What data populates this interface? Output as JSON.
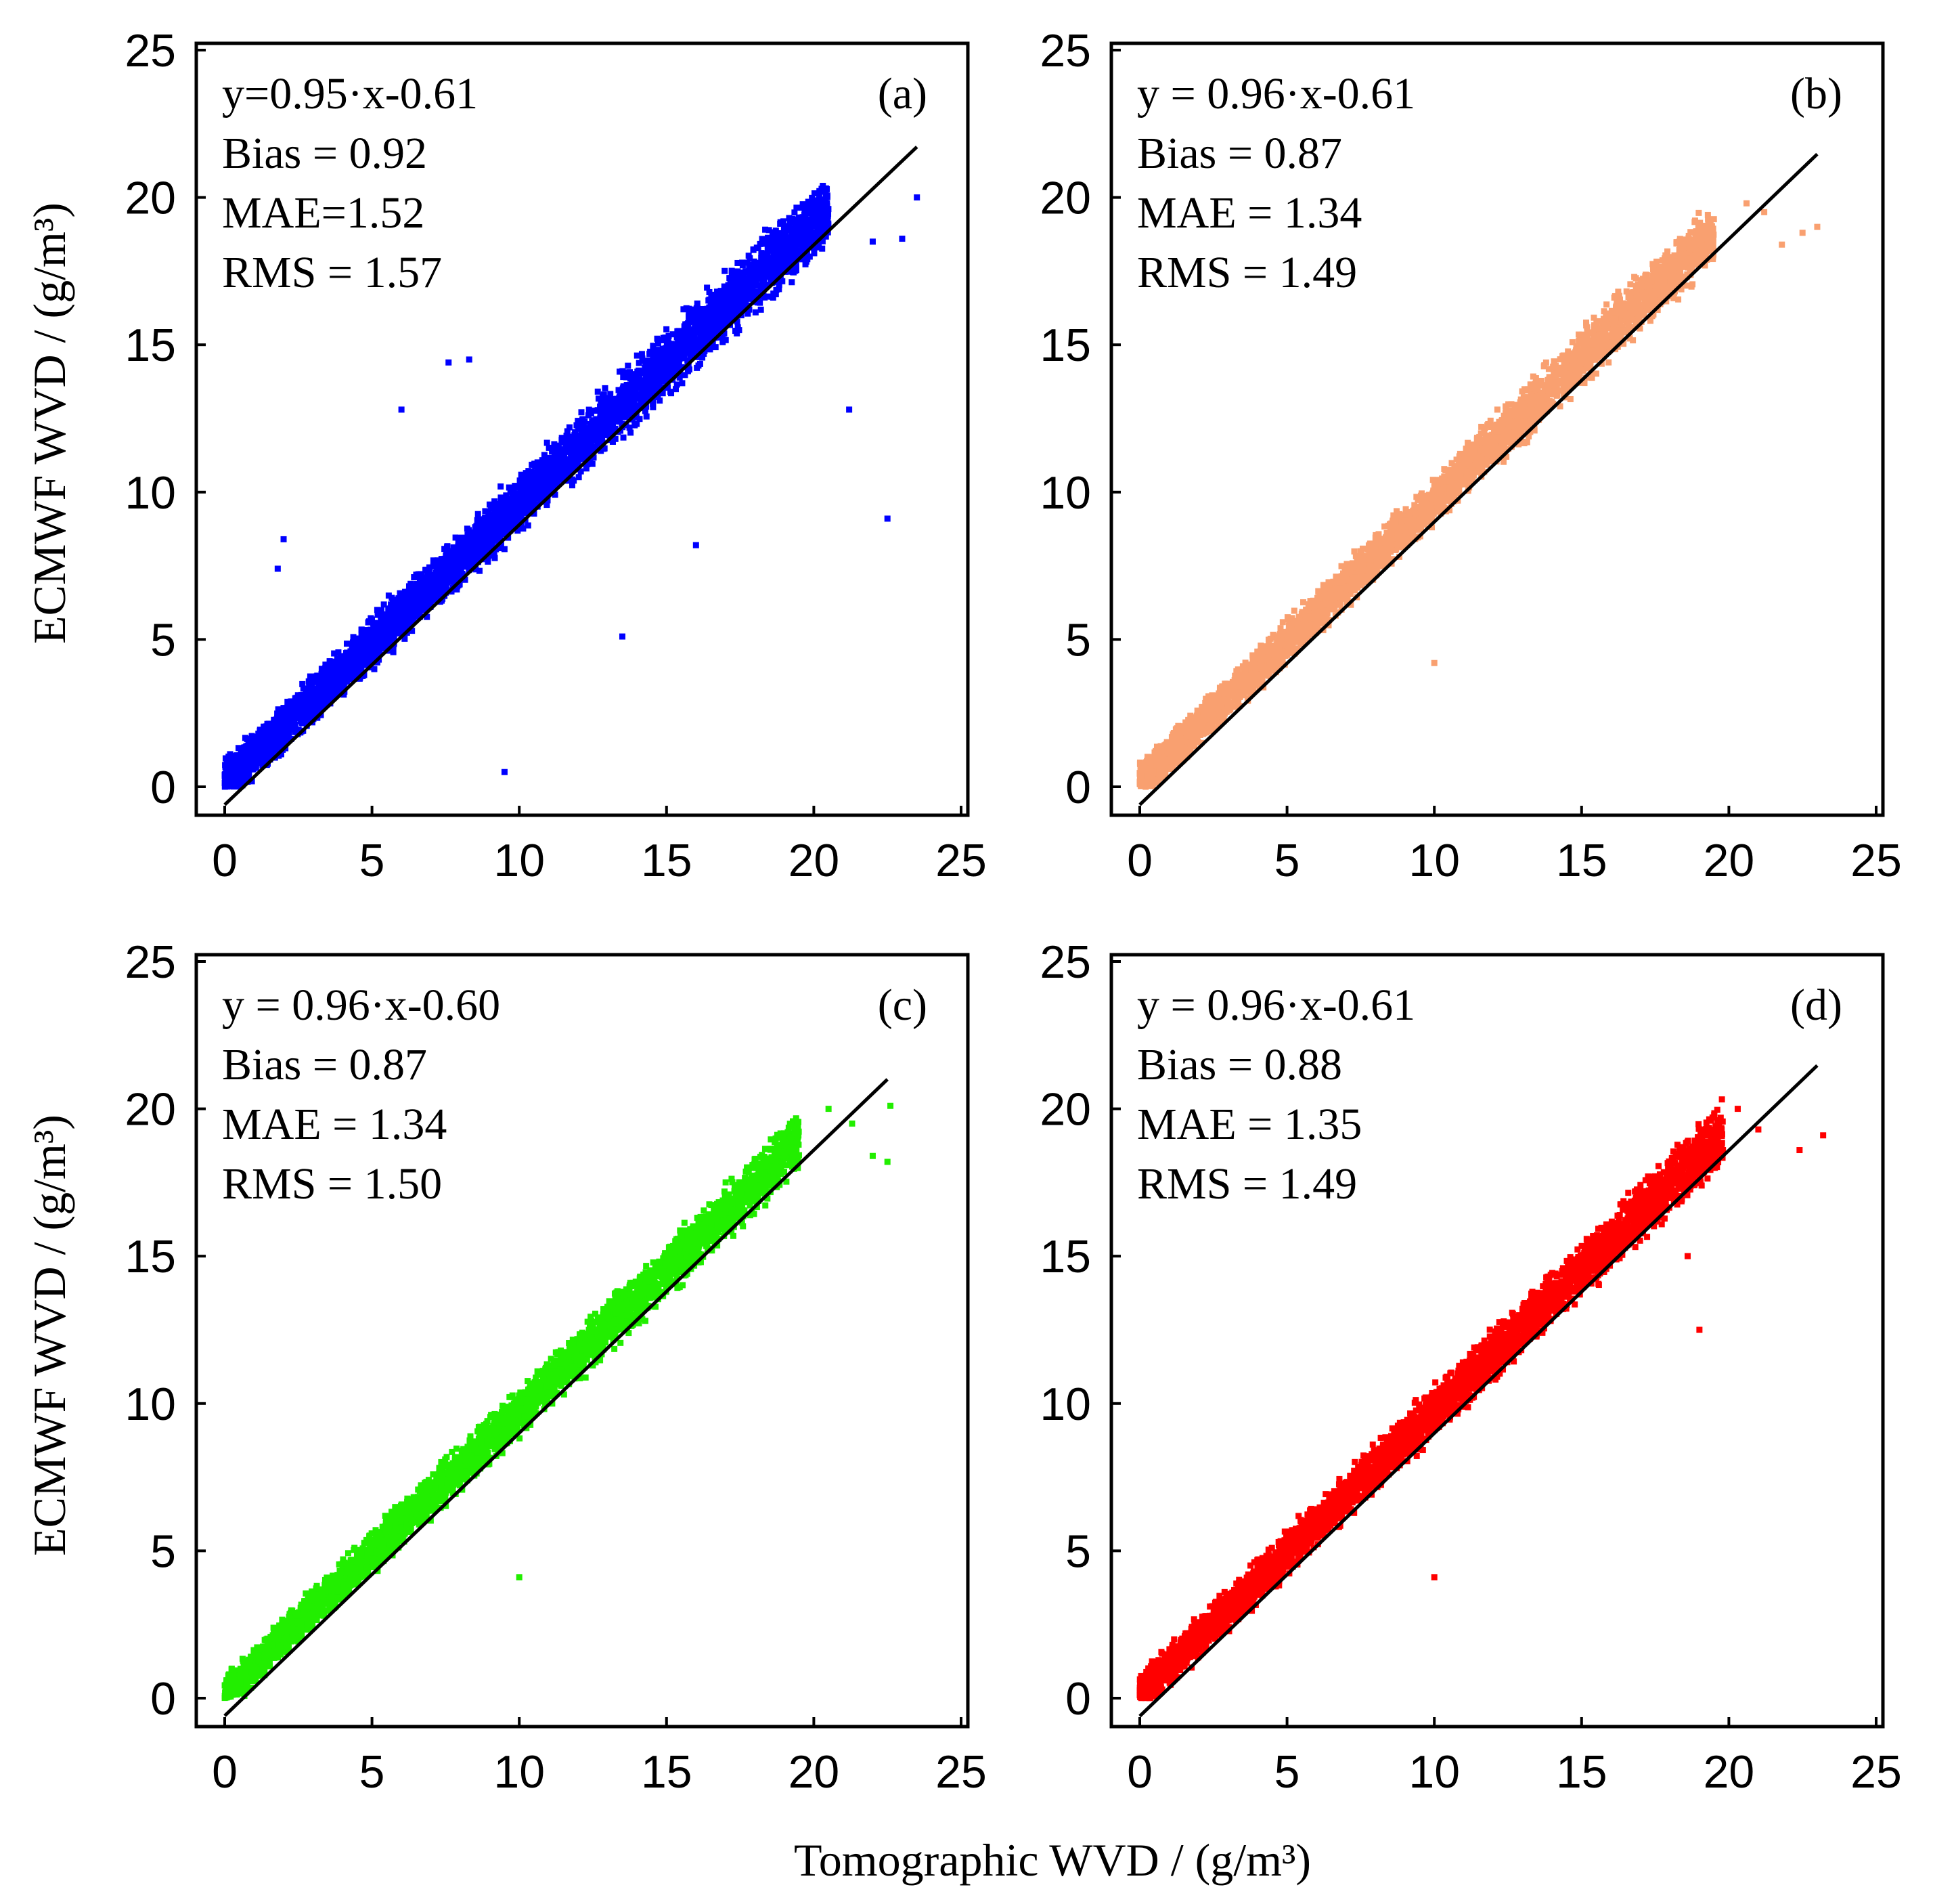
{
  "chart_data": [
    {
      "panel": "(a)",
      "type": "scatter",
      "color": "#0000ff",
      "xlim": [
        0,
        25
      ],
      "ylim": [
        0,
        25
      ],
      "xticks": [
        0,
        5,
        10,
        15,
        20,
        25
      ],
      "yticks": [
        0,
        5,
        10,
        15,
        20,
        25
      ],
      "fit": {
        "slope": 0.95,
        "intercept": -0.61,
        "x_range": [
          0,
          23.5
        ]
      },
      "stats": [
        "y=0.95·x-0.61",
        "Bias = 0.92",
        "MAE=1.52",
        "RMS = 1.57"
      ],
      "cluster": {
        "x_max": 20.5,
        "spread": 1.6,
        "count": 5200,
        "seed": 11
      },
      "outliers": [
        [
          23.5,
          20.0
        ],
        [
          22.5,
          9.1
        ],
        [
          21.2,
          12.8
        ],
        [
          9.5,
          0.5
        ],
        [
          8.3,
          14.5
        ],
        [
          7.6,
          14.4
        ],
        [
          6.0,
          12.8
        ],
        [
          2.0,
          8.4
        ],
        [
          1.8,
          7.4
        ],
        [
          22.0,
          18.5
        ],
        [
          23.0,
          18.6
        ],
        [
          16.0,
          8.2
        ],
        [
          13.5,
          5.1
        ]
      ]
    },
    {
      "panel": "(b)",
      "type": "scatter",
      "color": "#f9a070",
      "xlim": [
        0,
        25
      ],
      "ylim": [
        0,
        25
      ],
      "xticks": [
        0,
        5,
        10,
        15,
        20,
        25
      ],
      "yticks": [
        0,
        5,
        10,
        15,
        20,
        25
      ],
      "fit": {
        "slope": 0.96,
        "intercept": -0.61,
        "x_range": [
          0,
          23.0
        ]
      },
      "stats": [
        "y = 0.96·x-0.61",
        "Bias = 0.87",
        "MAE =  1.34",
        "RMS = 1.49"
      ],
      "cluster": {
        "x_max": 19.5,
        "spread": 1.3,
        "count": 4200,
        "seed": 23
      },
      "outliers": [
        [
          21.8,
          18.4
        ],
        [
          22.5,
          18.8
        ],
        [
          23.0,
          19.0
        ],
        [
          20.6,
          19.8
        ],
        [
          21.2,
          19.5
        ],
        [
          10.0,
          4.2
        ]
      ]
    },
    {
      "panel": "(c)",
      "type": "scatter",
      "color": "#22ee00",
      "xlim": [
        0,
        25
      ],
      "ylim": [
        0,
        25
      ],
      "xticks": [
        0,
        5,
        10,
        15,
        20,
        25
      ],
      "yticks": [
        0,
        5,
        10,
        15,
        20,
        25
      ],
      "fit": {
        "slope": 0.96,
        "intercept": -0.6,
        "x_range": [
          0,
          22.5
        ]
      },
      "stats": [
        "y = 0.96·x-0.60",
        "Bias = 0.87",
        "MAE = 1.34",
        "RMS = 1.50"
      ],
      "cluster": {
        "x_max": 19.5,
        "spread": 1.3,
        "count": 4200,
        "seed": 37
      },
      "outliers": [
        [
          22.5,
          18.2
        ],
        [
          22.0,
          18.4
        ],
        [
          21.3,
          19.5
        ],
        [
          20.5,
          20.0
        ],
        [
          22.6,
          20.1
        ],
        [
          10.0,
          4.1
        ]
      ]
    },
    {
      "panel": "(d)",
      "type": "scatter",
      "color": "#ff0000",
      "xlim": [
        0,
        25
      ],
      "ylim": [
        0,
        25
      ],
      "xticks": [
        0,
        5,
        10,
        15,
        20,
        25
      ],
      "yticks": [
        0,
        5,
        10,
        15,
        20,
        25
      ],
      "fit": {
        "slope": 0.96,
        "intercept": -0.61,
        "x_range": [
          0,
          23.0
        ]
      },
      "stats": [
        "y = 0.96·x-0.61",
        "Bias = 0.88",
        "MAE = 1.35",
        "RMS = 1.49"
      ],
      "cluster": {
        "x_max": 19.8,
        "spread": 1.35,
        "count": 4600,
        "seed": 53
      },
      "outliers": [
        [
          23.2,
          19.1
        ],
        [
          22.4,
          18.6
        ],
        [
          21.0,
          19.3
        ],
        [
          20.3,
          20.0
        ],
        [
          18.6,
          15.0
        ],
        [
          19.0,
          12.5
        ],
        [
          10.0,
          4.1
        ]
      ]
    }
  ],
  "axes": {
    "ylabel": "ECMWF WVD / (g/m³)",
    "xlabel": "Tomographic WVD / (g/m³)"
  }
}
